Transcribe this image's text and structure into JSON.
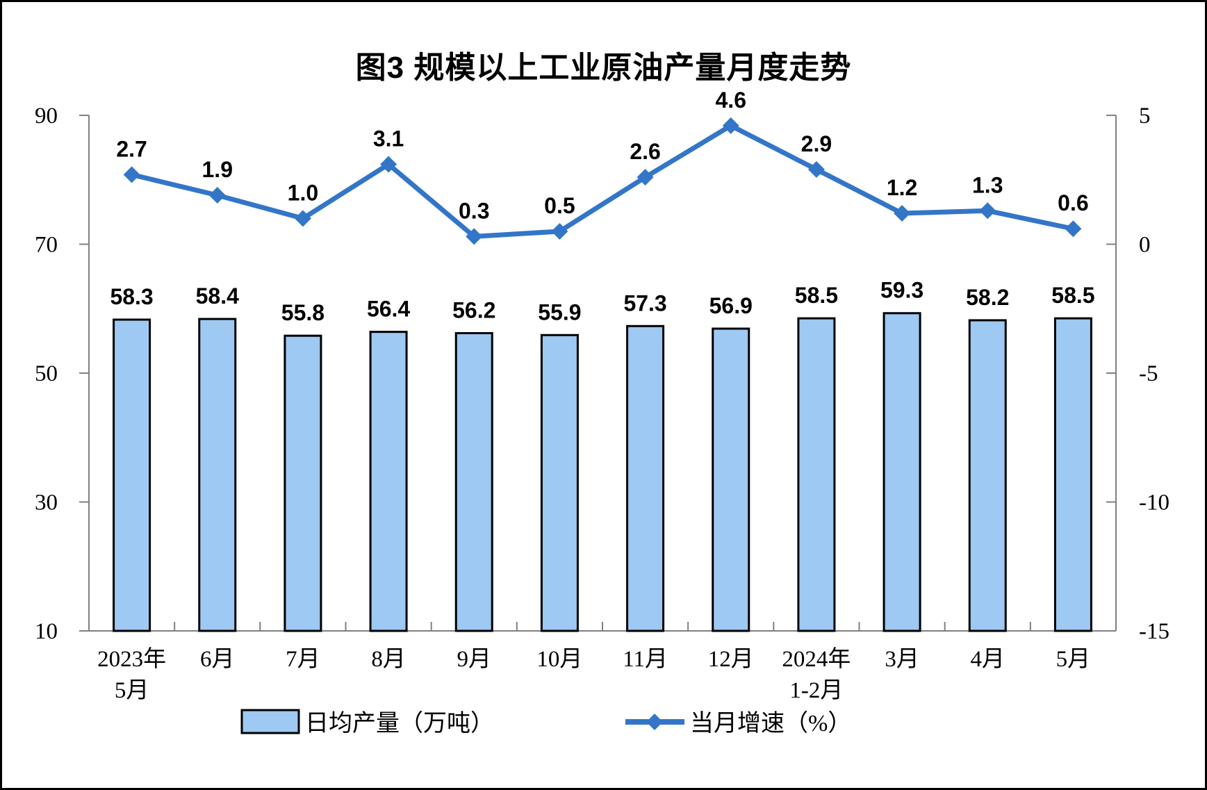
{
  "title": "图3 规模以上工业原油产量月度走势",
  "legend": {
    "bar_label": "日均产量（万吨）",
    "line_label": "当月增速（%）"
  },
  "colors": {
    "bar_fill": "#9DC9F3",
    "bar_border": "#000000",
    "line": "#3376C8",
    "axis": "#808080",
    "text": "#000000"
  },
  "chart_data": {
    "type": "bar",
    "combo": "bar+line",
    "title": "图3 规模以上工业原油产量月度走势",
    "categories": [
      "2023年|5月",
      "6月",
      "7月",
      "8月",
      "9月",
      "10月",
      "11月",
      "12月",
      "2024年|1-2月",
      "3月",
      "4月",
      "5月"
    ],
    "series": [
      {
        "name": "日均产量（万吨）",
        "type": "bar",
        "axis": "left",
        "values": [
          58.3,
          58.4,
          55.8,
          56.4,
          56.2,
          55.9,
          57.3,
          56.9,
          58.5,
          59.3,
          58.2,
          58.5
        ]
      },
      {
        "name": "当月增速（%）",
        "type": "line",
        "axis": "right",
        "values": [
          2.7,
          1.9,
          1.0,
          3.1,
          0.3,
          0.5,
          2.6,
          4.6,
          2.9,
          1.2,
          1.3,
          0.6
        ]
      }
    ],
    "left_axis": {
      "ticks": [
        90,
        70,
        50,
        30,
        10
      ],
      "min": 10,
      "max": 90
    },
    "right_axis": {
      "ticks": [
        5,
        0,
        -5,
        -10,
        -15
      ],
      "min": -15,
      "max": 5
    },
    "grid": false,
    "legend_position": "bottom",
    "xlabel": "",
    "ylabel_left": "",
    "ylabel_right": ""
  }
}
